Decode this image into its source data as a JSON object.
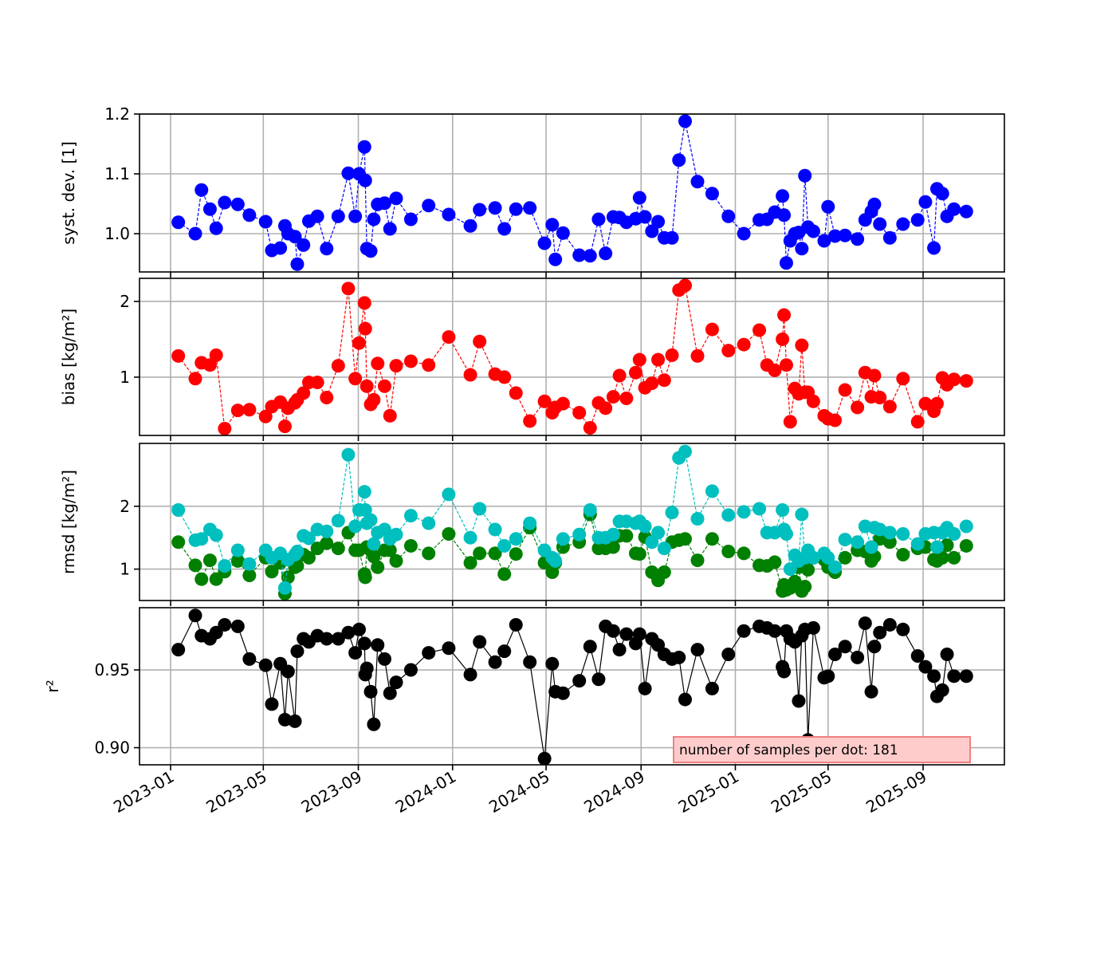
{
  "chart_data": {
    "type": "line",
    "x_unit": "days since 2023-01-01",
    "xlim": [
      "2022-11-22",
      "2025-12-15"
    ],
    "x_tick_labels": [
      "2023-01",
      "2023-05",
      "2023-09",
      "2024-01",
      "2024-05",
      "2024-09",
      "2025-01",
      "2025-05",
      "2025-09"
    ],
    "x_tick_days": [
      0,
      120,
      243,
      365,
      486,
      609,
      731,
      851,
      974
    ],
    "x": [
      10,
      32,
      40,
      51,
      59,
      70,
      87,
      102,
      123,
      131,
      142,
      148,
      152,
      161,
      164,
      172,
      179,
      190,
      202,
      217,
      230,
      239,
      244,
      251,
      252,
      254,
      259,
      263,
      268,
      277,
      284,
      292,
      311,
      334,
      360,
      388,
      400,
      420,
      432,
      447,
      465,
      484,
      494,
      498,
      508,
      529,
      543,
      554,
      563,
      573,
      581,
      590,
      602,
      607,
      614,
      623,
      631,
      639,
      649,
      658,
      666,
      682,
      701,
      722,
      742,
      762,
      772,
      782,
      792,
      794,
      797,
      802,
      808,
      813,
      817,
      821,
      825,
      832,
      846,
      851,
      860,
      873,
      889,
      899,
      907,
      911,
      918,
      931,
      948,
      967,
      977,
      988,
      992,
      999,
      1005,
      1014,
      1030
    ],
    "annotation": "number of samples per dot: 181",
    "panels": [
      {
        "ylabel": "syst. dev. [1]",
        "ylim": [
          0.936,
          1.2
        ],
        "yticks": [
          1.0,
          1.1,
          1.2
        ],
        "ytick_labels": [
          "1.0",
          "1.1",
          "1.2"
        ],
        "grid": true,
        "series": [
          {
            "name": "syst. dev.",
            "color": "#0000ff",
            "line": "dashed",
            "values": [
              1.019,
              1.0,
              1.073,
              1.041,
              1.009,
              1.052,
              1.049,
              1.031,
              1.02,
              0.972,
              0.976,
              1.013,
              1.0,
              0.995,
              0.949,
              0.981,
              1.021,
              1.029,
              0.975,
              1.029,
              1.101,
              1.029,
              1.1,
              1.145,
              1.089,
              0.975,
              0.971,
              1.024,
              1.049,
              1.051,
              1.008,
              1.059,
              1.024,
              1.047,
              1.032,
              1.013,
              1.04,
              1.043,
              1.008,
              1.041,
              1.043,
              0.984,
              1.015,
              0.957,
              1.001,
              0.964,
              0.963,
              1.024,
              0.967,
              1.028,
              1.027,
              1.019,
              1.025,
              1.06,
              1.028,
              1.004,
              1.02,
              0.993,
              0.993,
              1.123,
              1.188,
              1.087,
              1.067,
              1.029,
              1.0,
              1.023,
              1.024,
              1.036,
              1.063,
              1.031,
              0.951,
              0.988,
              1.0,
              1.002,
              0.975,
              1.097,
              1.011,
              1.004,
              0.988,
              1.045,
              0.996,
              0.997,
              0.991,
              1.023,
              1.037,
              1.049,
              1.016,
              0.993,
              1.016,
              1.023,
              1.053,
              0.976,
              1.075,
              1.067,
              1.029,
              1.041,
              1.037
            ]
          }
        ]
      },
      {
        "ylabel": "bias [kg/m²]",
        "ylim": [
          0.23,
          2.305
        ],
        "yticks": [
          1,
          2
        ],
        "ytick_labels": [
          "1",
          "2"
        ],
        "grid": true,
        "series": [
          {
            "name": "bias",
            "color": "#ff0000",
            "line": "dashed",
            "values": [
              1.28,
              0.98,
              1.19,
              1.16,
              1.29,
              0.32,
              0.56,
              0.57,
              0.48,
              0.61,
              0.67,
              0.35,
              0.59,
              0.66,
              0.7,
              0.79,
              0.93,
              0.93,
              0.73,
              1.15,
              2.17,
              0.98,
              1.45,
              1.98,
              1.64,
              0.88,
              0.64,
              0.7,
              1.18,
              0.88,
              0.49,
              1.15,
              1.21,
              1.16,
              1.53,
              1.03,
              1.47,
              1.04,
              1.0,
              0.79,
              0.42,
              0.68,
              0.53,
              0.6,
              0.65,
              0.53,
              0.33,
              0.66,
              0.59,
              0.74,
              1.02,
              0.72,
              1.06,
              1.23,
              0.86,
              0.92,
              1.23,
              0.96,
              1.29,
              2.15,
              2.21,
              1.28,
              1.63,
              1.35,
              1.43,
              1.62,
              1.16,
              1.09,
              1.5,
              1.82,
              1.16,
              0.41,
              0.85,
              0.78,
              1.42,
              0.8,
              0.8,
              0.68,
              0.49,
              0.45,
              0.43,
              0.83,
              0.6,
              1.06,
              0.74,
              1.02,
              0.73,
              0.61,
              0.98,
              0.41,
              0.65,
              0.55,
              0.65,
              0.99,
              0.9,
              0.97,
              0.95
            ]
          }
        ]
      },
      {
        "ylabel": "rmsd [kg/m²]",
        "ylim": [
          0.5,
          3.0
        ],
        "yticks": [
          1,
          2
        ],
        "ytick_labels": [
          "1",
          "2"
        ],
        "grid": true,
        "series": [
          {
            "name": "rmsd (green)",
            "color": "#008000",
            "line": "dashed",
            "values": [
              1.43,
              1.06,
              0.84,
              1.14,
              0.84,
              0.96,
              1.13,
              0.9,
              1.18,
              0.96,
              1.1,
              0.61,
              0.87,
              1.03,
              1.05,
              1.23,
              1.18,
              1.33,
              1.41,
              1.33,
              1.58,
              1.3,
              1.3,
              0.92,
              0.87,
              1.35,
              1.3,
              1.2,
              1.03,
              1.3,
              1.3,
              1.13,
              1.37,
              1.25,
              1.56,
              1.1,
              1.25,
              1.25,
              0.92,
              1.24,
              1.66,
              1.1,
              0.95,
              1.1,
              1.35,
              1.43,
              1.87,
              1.33,
              1.33,
              1.35,
              1.53,
              1.53,
              1.25,
              1.24,
              1.51,
              0.95,
              0.82,
              0.95,
              1.43,
              1.46,
              1.48,
              1.14,
              1.48,
              1.28,
              1.25,
              1.06,
              1.05,
              1.11,
              0.65,
              0.75,
              0.67,
              0.7,
              0.8,
              1.03,
              0.65,
              0.72,
              0.99,
              1.18,
              1.15,
              1.03,
              0.95,
              1.18,
              1.3,
              1.28,
              1.13,
              1.2,
              1.48,
              1.43,
              1.23,
              1.33,
              1.35,
              1.15,
              1.13,
              1.18,
              1.38,
              1.18,
              1.37
            ]
          },
          {
            "name": "rmsd (cyan)",
            "color": "#00bfbf",
            "line": "dashed",
            "values": [
              1.94,
              1.46,
              1.48,
              1.63,
              1.54,
              1.05,
              1.3,
              1.08,
              1.3,
              1.18,
              1.25,
              0.7,
              1.15,
              1.23,
              1.28,
              1.53,
              1.49,
              1.63,
              1.6,
              1.77,
              2.82,
              1.68,
              1.94,
              2.23,
              1.94,
              1.73,
              1.78,
              1.4,
              1.58,
              1.63,
              1.48,
              1.55,
              1.85,
              1.73,
              2.19,
              1.5,
              1.96,
              1.63,
              1.37,
              1.48,
              1.73,
              1.3,
              1.18,
              1.13,
              1.48,
              1.55,
              1.94,
              1.5,
              1.5,
              1.55,
              1.76,
              1.76,
              1.73,
              1.76,
              1.68,
              1.43,
              1.58,
              1.33,
              1.9,
              2.77,
              2.87,
              1.8,
              2.24,
              1.86,
              1.91,
              1.96,
              1.58,
              1.58,
              1.94,
              1.63,
              1.56,
              1.0,
              1.22,
              1.13,
              1.87,
              1.18,
              1.3,
              1.18,
              1.25,
              1.18,
              1.03,
              1.47,
              1.43,
              1.68,
              1.35,
              1.66,
              1.63,
              1.58,
              1.56,
              1.4,
              1.56,
              1.58,
              1.35,
              1.58,
              1.66,
              1.56,
              1.68
            ]
          }
        ]
      },
      {
        "ylabel": "r²",
        "ylim": [
          0.889,
          0.99
        ],
        "yticks": [
          0.9,
          0.95
        ],
        "ytick_labels": [
          "0.90",
          "0.95"
        ],
        "grid": true,
        "series": [
          {
            "name": "r²",
            "color": "#000000",
            "line": "solid",
            "values": [
              0.963,
              0.985,
              0.972,
              0.97,
              0.974,
              0.979,
              0.978,
              0.957,
              0.953,
              0.928,
              0.954,
              0.918,
              0.949,
              0.917,
              0.962,
              0.97,
              0.968,
              0.972,
              0.97,
              0.97,
              0.974,
              0.961,
              0.976,
              0.967,
              0.947,
              0.951,
              0.936,
              0.915,
              0.966,
              0.957,
              0.935,
              0.942,
              0.95,
              0.961,
              0.964,
              0.947,
              0.968,
              0.955,
              0.962,
              0.979,
              0.955,
              0.893,
              0.954,
              0.936,
              0.935,
              0.943,
              0.965,
              0.944,
              0.978,
              0.975,
              0.963,
              0.973,
              0.967,
              0.973,
              0.938,
              0.97,
              0.966,
              0.96,
              0.957,
              0.958,
              0.931,
              0.963,
              0.938,
              0.96,
              0.975,
              0.978,
              0.977,
              0.975,
              0.952,
              0.949,
              0.975,
              0.97,
              0.968,
              0.93,
              0.972,
              0.976,
              0.905,
              0.977,
              0.945,
              0.946,
              0.96,
              0.965,
              0.958,
              0.98,
              0.936,
              0.965,
              0.974,
              0.979,
              0.976,
              0.959,
              0.952,
              0.946,
              0.933,
              0.937,
              0.96,
              0.946,
              0.946
            ]
          }
        ]
      }
    ]
  }
}
